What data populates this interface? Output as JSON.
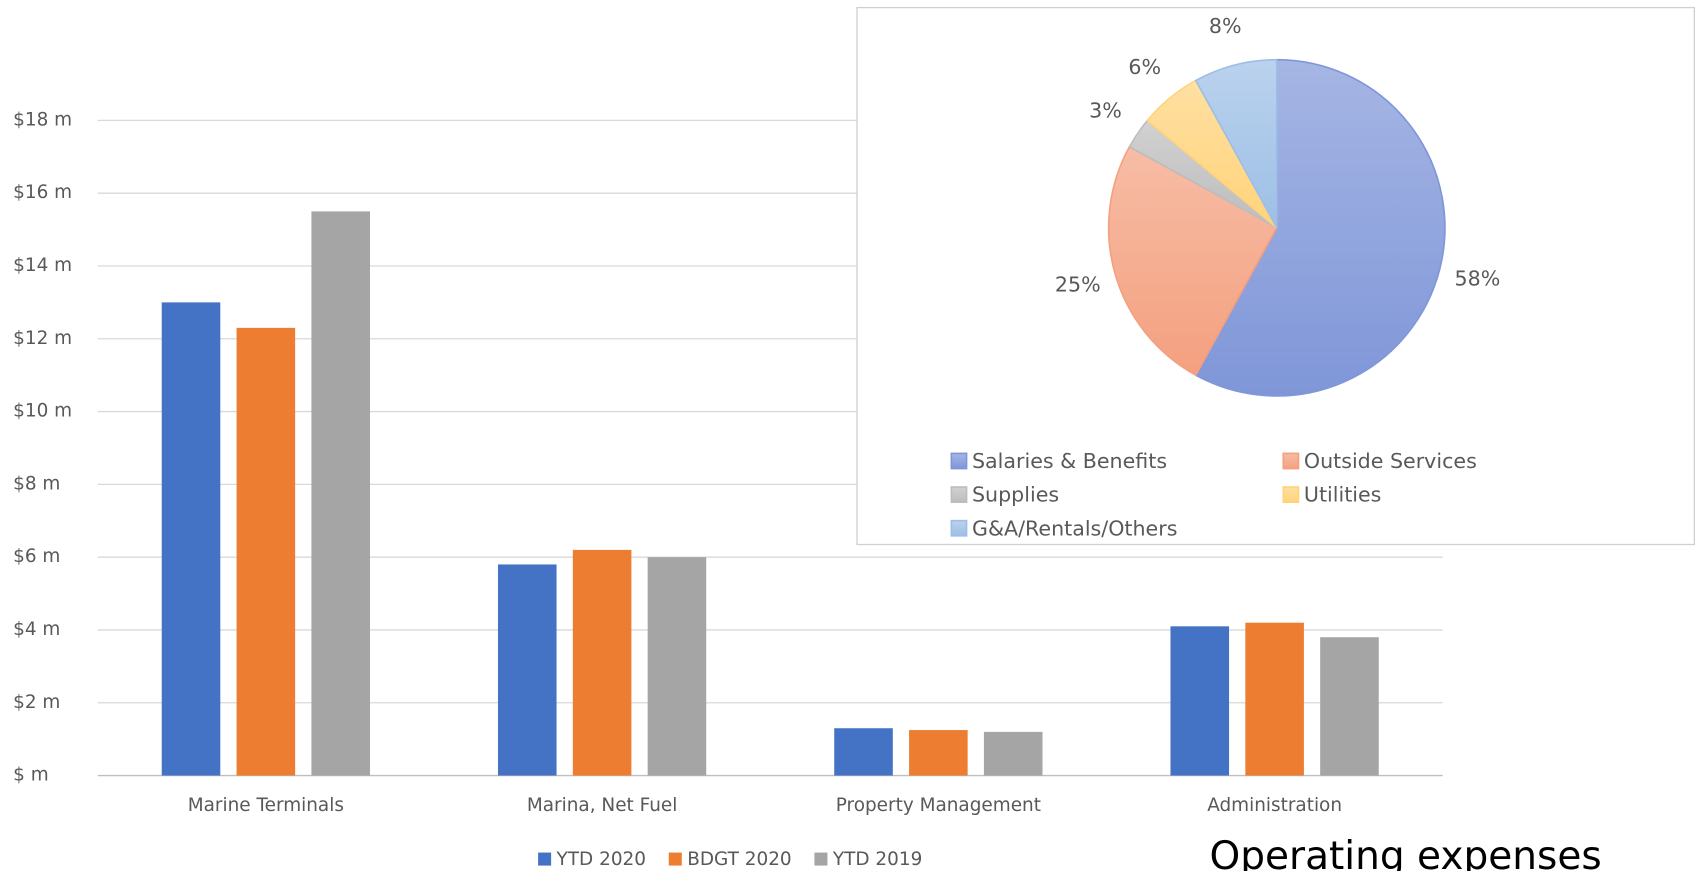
{
  "caption": "Operating expenses",
  "chart_data": [
    {
      "type": "bar",
      "categories": [
        "Marine Terminals",
        "Marina, Net Fuel",
        "Property Management",
        "Administration"
      ],
      "series": [
        {
          "name": "YTD 2020",
          "color": "#4472c4",
          "values": [
            13.0,
            5.8,
            1.3,
            4.1
          ]
        },
        {
          "name": "BDGT 2020",
          "color": "#ed7d31",
          "values": [
            12.3,
            6.2,
            1.25,
            4.2
          ]
        },
        {
          "name": "YTD 2019",
          "color": "#a5a5a5",
          "values": [
            15.5,
            6.0,
            1.2,
            3.8
          ]
        }
      ],
      "ylim": [
        0,
        18
      ],
      "yticks": [
        {
          "value": 0,
          "label": "$ m"
        },
        {
          "value": 2,
          "label": "$2 m"
        },
        {
          "value": 4,
          "label": "$4 m"
        },
        {
          "value": 6,
          "label": "$6 m"
        },
        {
          "value": 8,
          "label": "$8 m"
        },
        {
          "value": 10,
          "label": "$10 m"
        },
        {
          "value": 12,
          "label": "$12 m"
        },
        {
          "value": 14,
          "label": "$14 m"
        },
        {
          "value": 16,
          "label": "$16 m"
        },
        {
          "value": 18,
          "label": "$18 m"
        }
      ],
      "grid": true,
      "legend": "bottom"
    },
    {
      "type": "pie",
      "categories": [
        "Salaries & Benefits",
        "Outside Services",
        "Supplies",
        "Utilities",
        "G&A/Rentals/Others"
      ],
      "values": [
        58,
        25,
        3,
        6,
        8
      ],
      "value_labels": [
        "58%",
        "25%",
        "3%",
        "6%",
        "8%"
      ],
      "colors": [
        "#7f96d8",
        "#f4a07f",
        "#bdbdbd",
        "#ffd37a",
        "#9dbfe6"
      ],
      "legend": "bottom"
    }
  ]
}
